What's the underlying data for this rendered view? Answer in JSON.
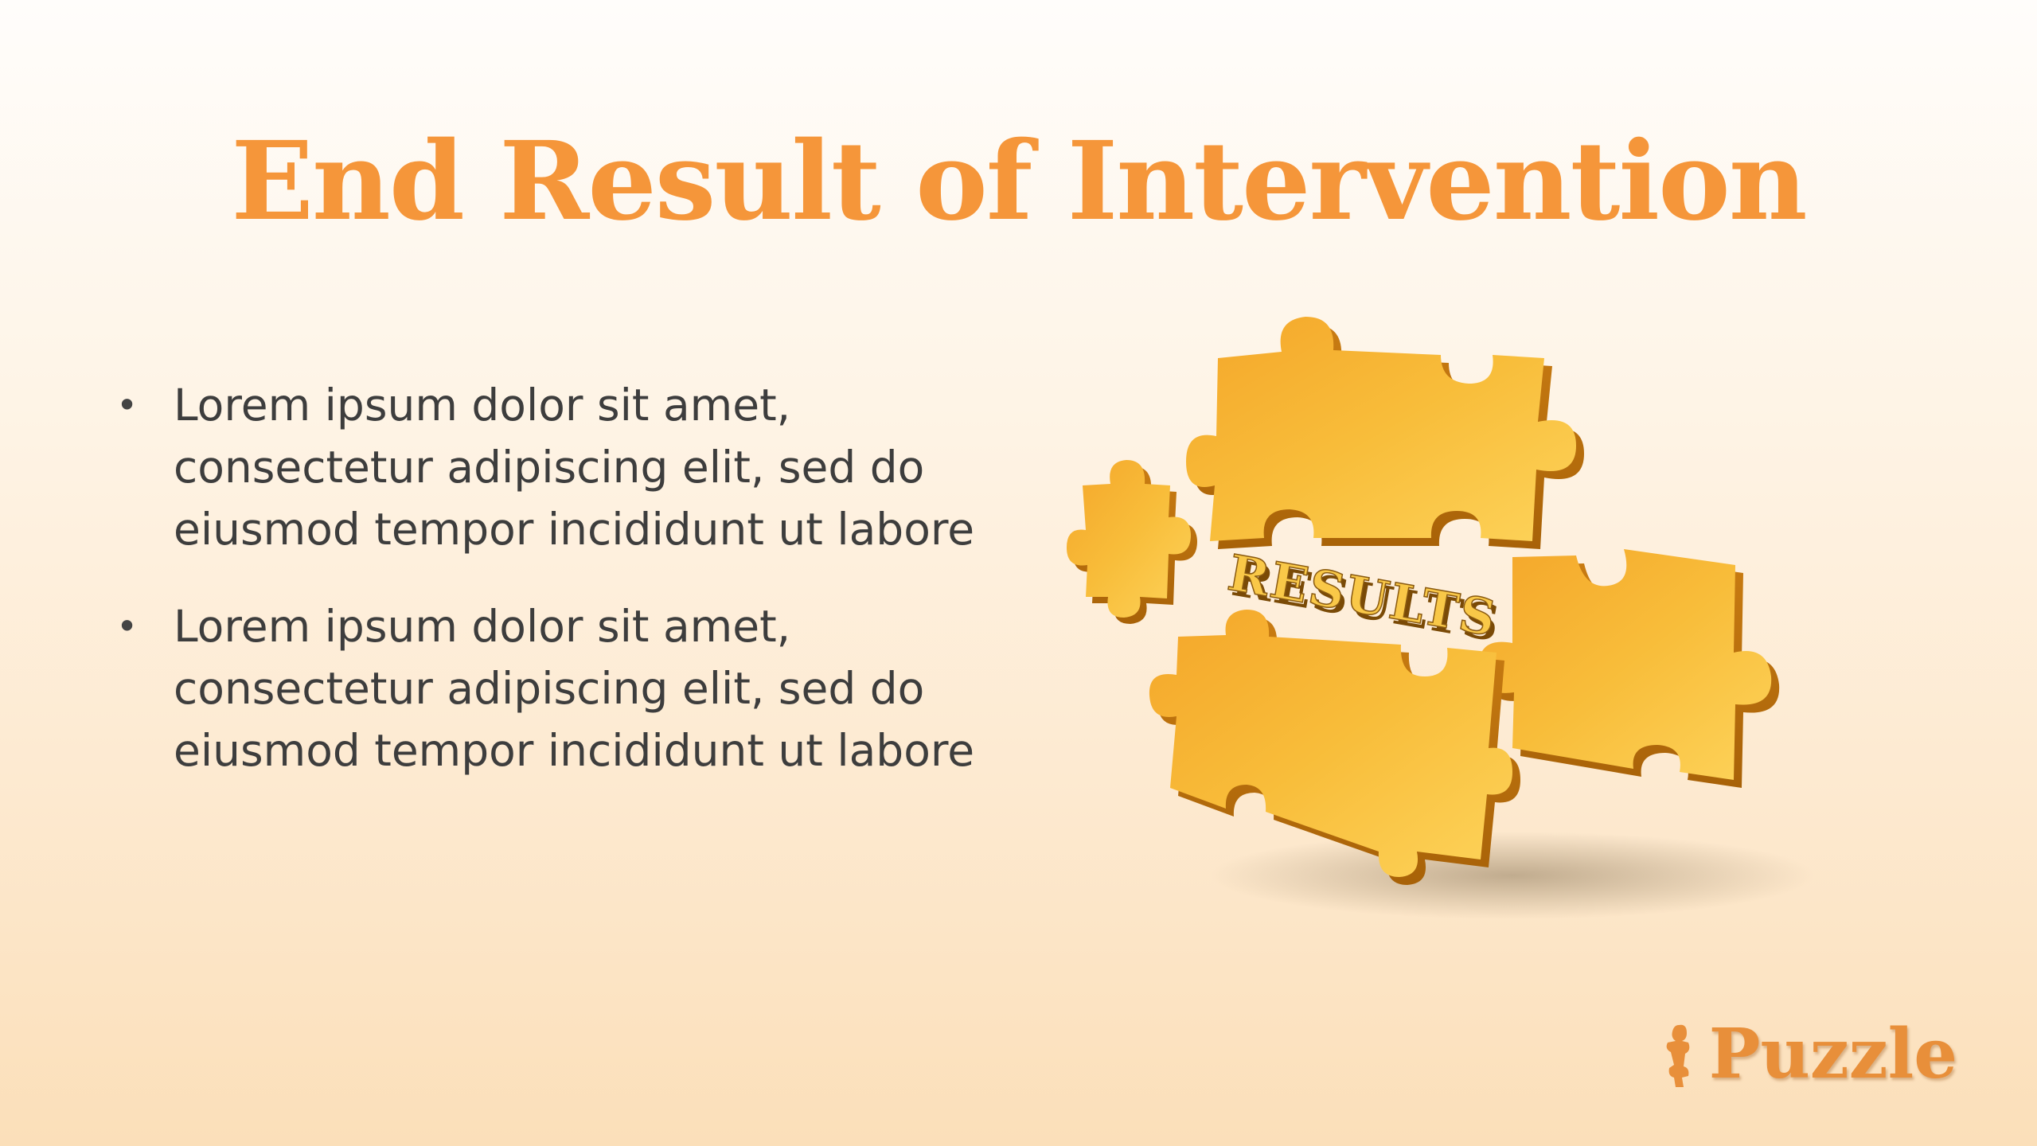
{
  "slide": {
    "title": "End Result of Intervention",
    "bullets": [
      "Lorem ipsum dolor sit amet, consectetur adipiscing elit, sed do eiusmod tempor incididunt ut labore",
      "Lorem ipsum dolor sit amet, consectetur adipiscing elit, sed do eiusmod tempor incididunt ut labore"
    ],
    "bullet_glyph": "•"
  },
  "illustration": {
    "label": "RESULTS",
    "icon": "puzzle-pieces-illustration"
  },
  "logo": {
    "text": "Puzzle",
    "icon": "puzzle-figure-icon"
  },
  "colors": {
    "accent": "#f5963a",
    "puzzle_gold": "#f7b733",
    "body_text": "#3d3d3d"
  }
}
